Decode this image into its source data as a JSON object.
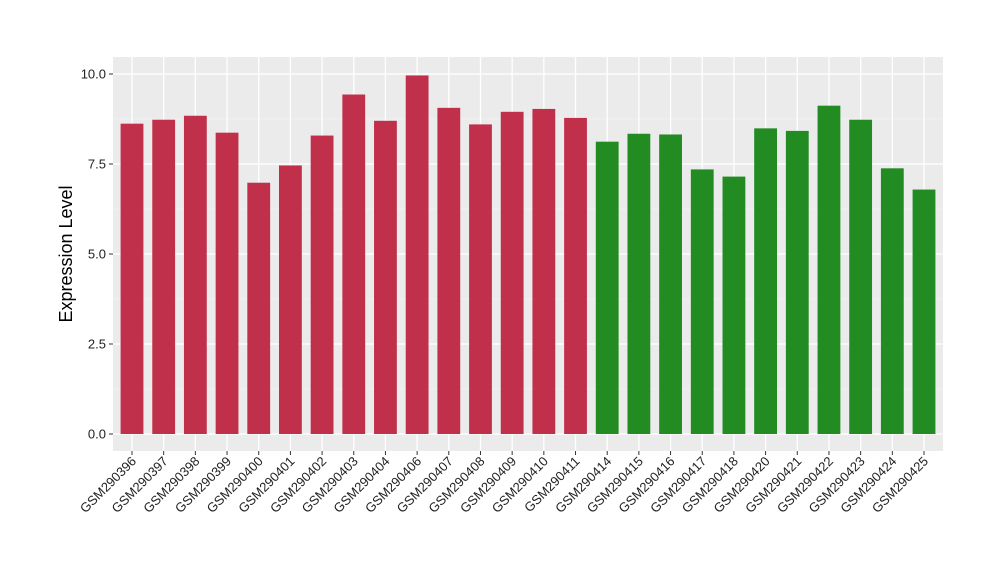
{
  "chart_data": {
    "type": "bar",
    "ylabel": "Expression Level",
    "xlabel": "",
    "ylim": [
      0,
      10.5
    ],
    "yticks": [
      0.0,
      2.5,
      5.0,
      7.5,
      10.0
    ],
    "ytick_labels": [
      "0.0",
      "2.5",
      "5.0",
      "7.5",
      "10.0"
    ],
    "grid": true,
    "categories": [
      "GSM290396",
      "GSM290397",
      "GSM290398",
      "GSM290399",
      "GSM290400",
      "GSM290401",
      "GSM290402",
      "GSM290403",
      "GSM290404",
      "GSM290406",
      "GSM290407",
      "GSM290408",
      "GSM290409",
      "GSM290410",
      "GSM290411",
      "GSM290414",
      "GSM290415",
      "GSM290416",
      "GSM290417",
      "GSM290418",
      "GSM290420",
      "GSM290421",
      "GSM290422",
      "GSM290423",
      "GSM290424",
      "GSM290425"
    ],
    "values": [
      8.62,
      8.73,
      8.84,
      8.37,
      6.98,
      7.46,
      8.29,
      9.43,
      8.7,
      9.96,
      9.06,
      8.6,
      8.95,
      9.03,
      8.78,
      8.12,
      8.34,
      8.32,
      7.35,
      7.15,
      8.49,
      8.42,
      9.12,
      8.73,
      7.38,
      6.79
    ],
    "groups": [
      "a",
      "a",
      "a",
      "a",
      "a",
      "a",
      "a",
      "a",
      "a",
      "a",
      "a",
      "a",
      "a",
      "a",
      "a",
      "b",
      "b",
      "b",
      "b",
      "b",
      "b",
      "b",
      "b",
      "b",
      "b",
      "b"
    ],
    "colors": {
      "a": "#C0304B",
      "b": "#228B22",
      "panel": "#EBEBEB",
      "grid_major": "#FFFFFF",
      "grid_minor": "#F5F5F5"
    }
  }
}
